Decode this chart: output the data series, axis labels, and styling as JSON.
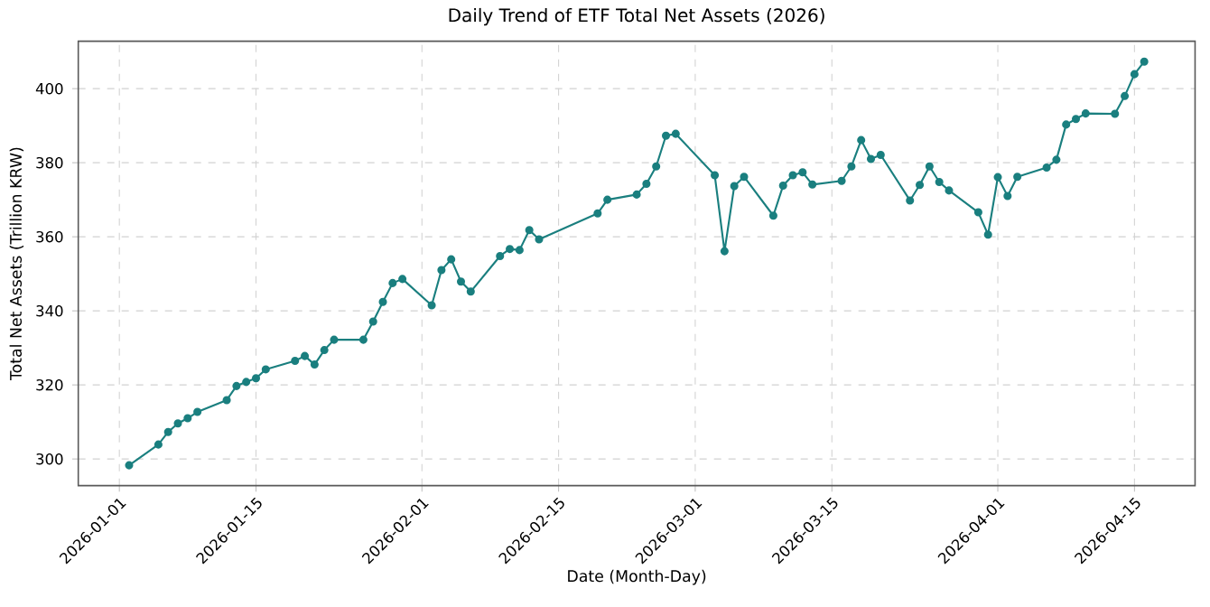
{
  "chart_data": {
    "type": "line",
    "title": "Daily Trend of ETF Total Net Assets (2026)",
    "xlabel": "Date (Month-Day)",
    "ylabel": "Total Net Assets (Trillion KRW)",
    "x": [
      "2026-01-02",
      "2026-01-05",
      "2026-01-06",
      "2026-01-07",
      "2026-01-08",
      "2026-01-09",
      "2026-01-12",
      "2026-01-13",
      "2026-01-14",
      "2026-01-15",
      "2026-01-16",
      "2026-01-19",
      "2026-01-20",
      "2026-01-21",
      "2026-01-22",
      "2026-01-23",
      "2026-01-26",
      "2026-01-27",
      "2026-01-28",
      "2026-01-29",
      "2026-01-30",
      "2026-02-02",
      "2026-02-03",
      "2026-02-04",
      "2026-02-05",
      "2026-02-06",
      "2026-02-09",
      "2026-02-10",
      "2026-02-11",
      "2026-02-12",
      "2026-02-13",
      "2026-02-19",
      "2026-02-20",
      "2026-02-23",
      "2026-02-24",
      "2026-02-25",
      "2026-02-26",
      "2026-02-27",
      "2026-03-03",
      "2026-03-04",
      "2026-03-05",
      "2026-03-06",
      "2026-03-09",
      "2026-03-10",
      "2026-03-11",
      "2026-03-12",
      "2026-03-13",
      "2026-03-16",
      "2026-03-17",
      "2026-03-18",
      "2026-03-19",
      "2026-03-20",
      "2026-03-23",
      "2026-03-24",
      "2026-03-25",
      "2026-03-26",
      "2026-03-27",
      "2026-03-30",
      "2026-03-31",
      "2026-04-01",
      "2026-04-02",
      "2026-04-03",
      "2026-04-06",
      "2026-04-07",
      "2026-04-08",
      "2026-04-09",
      "2026-04-10",
      "2026-04-13",
      "2026-04-14",
      "2026-04-15",
      "2026-04-16"
    ],
    "series": [
      {
        "color": "#1a7f7f",
        "values": [
          298.3,
          303.9,
          307.3,
          309.6,
          311.0,
          312.7,
          315.9,
          319.7,
          320.8,
          321.8,
          324.2,
          326.5,
          327.8,
          325.5,
          329.4,
          332.2,
          332.2,
          337.1,
          342.4,
          347.5,
          348.6,
          341.5,
          351.0,
          353.9,
          347.9,
          345.2,
          354.8,
          356.7,
          356.4,
          361.8,
          359.3,
          366.3,
          370.0,
          371.4,
          374.3,
          379.0,
          387.3,
          387.8,
          376.6,
          356.1,
          373.7,
          376.2,
          365.7,
          373.8,
          376.6,
          377.4,
          374.1,
          375.1,
          379.0,
          386.1,
          381.0,
          382.1,
          369.8,
          374.0,
          379.0,
          374.8,
          372.5,
          366.6,
          360.6,
          376.1,
          371.0,
          376.2,
          378.7,
          380.8,
          390.3,
          391.8,
          393.3,
          393.2,
          398.0,
          403.9,
          407.3
        ]
      }
    ],
    "xlim": [
      "2025-12-27T19:00",
      "2026-04-21T05:00"
    ],
    "xticks": [
      "2026-01-01",
      "2026-01-15",
      "2026-02-01",
      "2026-02-15",
      "2026-03-01",
      "2026-03-15",
      "2026-04-01",
      "2026-04-15"
    ],
    "ylim": [
      292.8,
      412.8
    ],
    "yticks": [
      300,
      320,
      340,
      360,
      380,
      400
    ],
    "grid": true,
    "marker": "circle",
    "line_style": "solid"
  }
}
